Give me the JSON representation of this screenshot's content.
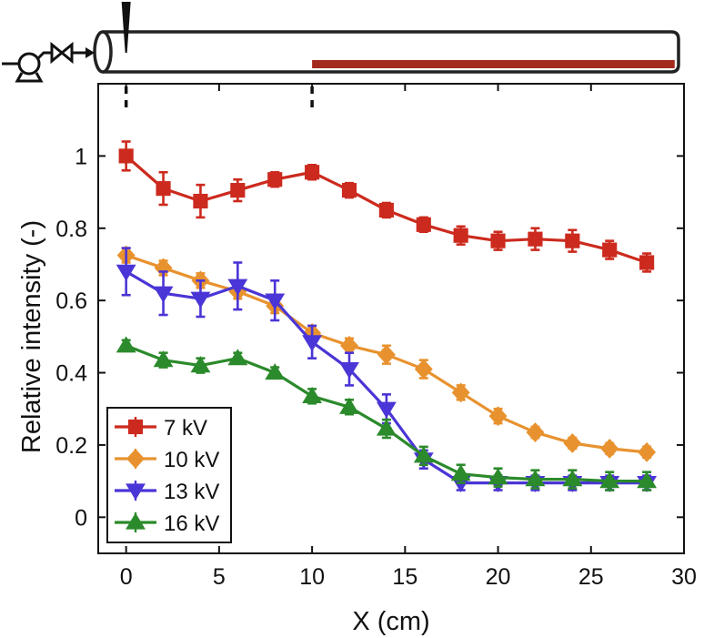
{
  "chart_data": {
    "type": "line",
    "xlabel": "X (cm)",
    "ylabel": "Relative intensity (-)",
    "xlim": [
      -1.5,
      30
    ],
    "ylim": [
      -0.1,
      1.2
    ],
    "xticks": [
      0,
      5,
      10,
      15,
      20,
      25,
      30
    ],
    "yticks": [
      0,
      0.2,
      0.4,
      0.6,
      0.8,
      1
    ],
    "ytick_labels": [
      "0",
      "0.2",
      "0.4",
      "0.6",
      "0.8",
      "1"
    ],
    "grid": false,
    "legend_position": "bottom-left",
    "x": [
      0,
      2,
      4,
      6,
      8,
      10,
      12,
      14,
      16,
      18,
      20,
      22,
      24,
      26,
      28
    ],
    "series": [
      {
        "name": "7 kV",
        "color": "#cc2a1e",
        "marker": "square",
        "values": [
          1.0,
          0.91,
          0.875,
          0.905,
          0.935,
          0.955,
          0.905,
          0.85,
          0.81,
          0.78,
          0.765,
          0.77,
          0.765,
          0.74,
          0.705
        ],
        "errors": [
          0.04,
          0.045,
          0.045,
          0.03,
          0.02,
          0.02,
          0.02,
          0.02,
          0.02,
          0.025,
          0.025,
          0.03,
          0.03,
          0.025,
          0.025
        ]
      },
      {
        "name": "10 kV",
        "color": "#e8922f",
        "marker": "diamond",
        "values": [
          0.725,
          0.69,
          0.655,
          0.625,
          0.585,
          0.51,
          0.475,
          0.45,
          0.41,
          0.345,
          0.28,
          0.235,
          0.205,
          0.19,
          0.18
        ],
        "errors": [
          0.02,
          0.02,
          0.02,
          0.02,
          0.02,
          0.02,
          0.02,
          0.025,
          0.025,
          0.02,
          0.02,
          0.015,
          0.015,
          0.015,
          0.015
        ]
      },
      {
        "name": "13 kV",
        "color": "#4a35d6",
        "marker": "triangle-down",
        "values": [
          0.68,
          0.62,
          0.605,
          0.64,
          0.6,
          0.485,
          0.41,
          0.3,
          0.16,
          0.095,
          0.095,
          0.095,
          0.095,
          0.095,
          0.095
        ],
        "errors": [
          0.065,
          0.06,
          0.05,
          0.065,
          0.055,
          0.045,
          0.045,
          0.04,
          0.025,
          0.02,
          0.02,
          0.02,
          0.02,
          0.02,
          0.02
        ]
      },
      {
        "name": "16 kV",
        "color": "#2b8a2b",
        "marker": "triangle-up",
        "values": [
          0.475,
          0.435,
          0.42,
          0.44,
          0.4,
          0.335,
          0.305,
          0.245,
          0.17,
          0.12,
          0.11,
          0.105,
          0.105,
          0.1,
          0.1
        ],
        "errors": [
          0.015,
          0.02,
          0.02,
          0.015,
          0.015,
          0.02,
          0.02,
          0.025,
          0.025,
          0.025,
          0.025,
          0.025,
          0.025,
          0.025,
          0.025
        ]
      }
    ],
    "schematic": {
      "tube_color": "#222222",
      "electrode_color": "#a52a1e",
      "electrode_range_cm": [
        10,
        29.5
      ],
      "needle_positions_cm": [
        0,
        10
      ]
    }
  }
}
